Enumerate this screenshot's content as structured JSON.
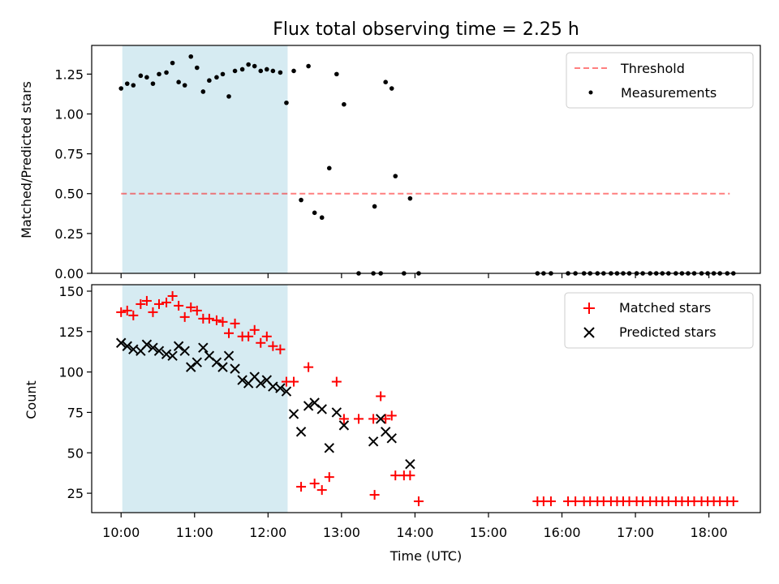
{
  "title": "Flux total observing time = 2.25 h",
  "colors": {
    "shade": "#add8e6",
    "threshold": "#ff0000",
    "measurements": "#000000",
    "matched": "#ff0000",
    "predicted": "#000000"
  },
  "chart_data": [
    {
      "type": "scatter",
      "title": "Flux total observing time = 2.25 h",
      "xlabel": "",
      "ylabel": "Matched/Predicted stars",
      "xlim": [
        "09:36",
        "18:42"
      ],
      "ylim": [
        0,
        1.43
      ],
      "yticks": [
        "0.00",
        "0.25",
        "0.50",
        "0.75",
        "1.00",
        "1.25"
      ],
      "ytick_values": [
        0,
        0.25,
        0.5,
        0.75,
        1.0,
        1.25
      ],
      "shaded_span": [
        "10:01",
        "12:16"
      ],
      "legend": [
        "Threshold",
        "Measurements"
      ],
      "legend_position": "upper right",
      "series": [
        {
          "name": "Threshold",
          "kind": "dashed-line",
          "x": [
            "10:00",
            "18:17"
          ],
          "y": [
            0.5,
            0.5
          ]
        },
        {
          "name": "Measurements",
          "kind": "points",
          "x": [
            "10:00",
            "10:05",
            "10:10",
            "10:16",
            "10:21",
            "10:26",
            "10:31",
            "10:37",
            "10:42",
            "10:47",
            "10:52",
            "10:57",
            "11:02",
            "11:07",
            "11:12",
            "11:18",
            "11:23",
            "11:28",
            "11:33",
            "11:39",
            "11:44",
            "11:49",
            "11:54",
            "11:59",
            "12:04",
            "12:10",
            "12:15",
            "12:21",
            "12:27",
            "12:33",
            "12:38",
            "12:44",
            "12:50",
            "12:56",
            "13:02",
            "13:14",
            "13:26",
            "13:27",
            "13:32",
            "13:36",
            "13:41",
            "13:44",
            "13:51",
            "13:56",
            "14:03",
            "15:40",
            "15:45",
            "15:51",
            "16:05",
            "16:11",
            "16:18",
            "16:23",
            "16:29",
            "16:34",
            "16:40",
            "16:45",
            "16:50",
            "16:55",
            "17:01",
            "17:06",
            "17:12",
            "17:17",
            "17:22",
            "17:27",
            "17:33",
            "17:38",
            "17:43",
            "17:48",
            "17:54",
            "17:59",
            "18:04",
            "18:09",
            "18:15",
            "18:20"
          ],
          "y": [
            1.16,
            1.19,
            1.18,
            1.24,
            1.23,
            1.19,
            1.25,
            1.26,
            1.32,
            1.2,
            1.18,
            1.36,
            1.29,
            1.14,
            1.21,
            1.23,
            1.25,
            1.11,
            1.27,
            1.28,
            1.31,
            1.3,
            1.27,
            1.28,
            1.27,
            1.26,
            1.07,
            1.27,
            0.46,
            1.3,
            0.38,
            0.35,
            0.66,
            1.25,
            1.06,
            0.0,
            0.0,
            0.42,
            0.0,
            1.2,
            1.16,
            0.61,
            0.0,
            0.47,
            0.0,
            0.0,
            0.0,
            0.0,
            0.0,
            0.0,
            0.0,
            0.0,
            0.0,
            0.0,
            0.0,
            0.0,
            0.0,
            0.0,
            0.0,
            0.0,
            0.0,
            0.0,
            0.0,
            0.0,
            0.0,
            0.0,
            0.0,
            0.0,
            0.0,
            0.0,
            0.0,
            0.0,
            0.0,
            0.0
          ]
        }
      ]
    },
    {
      "type": "scatter",
      "title": "",
      "xlabel": "Time (UTC)",
      "ylabel": "Count",
      "xlim": [
        "09:36",
        "18:42"
      ],
      "ylim": [
        13,
        154
      ],
      "xticks": [
        "10:00",
        "11:00",
        "12:00",
        "13:00",
        "14:00",
        "15:00",
        "16:00",
        "17:00",
        "18:00"
      ],
      "yticks": [
        "25",
        "50",
        "75",
        "100",
        "125",
        "150"
      ],
      "ytick_values": [
        25,
        50,
        75,
        100,
        125,
        150
      ],
      "shaded_span": [
        "10:01",
        "12:16"
      ],
      "legend": [
        "Matched stars",
        "Predicted stars"
      ],
      "legend_position": "upper right",
      "series": [
        {
          "name": "Matched stars",
          "marker": "+",
          "x": [
            "10:00",
            "10:05",
            "10:10",
            "10:16",
            "10:21",
            "10:26",
            "10:31",
            "10:37",
            "10:42",
            "10:47",
            "10:52",
            "10:57",
            "11:02",
            "11:07",
            "11:12",
            "11:18",
            "11:23",
            "11:28",
            "11:33",
            "11:39",
            "11:44",
            "11:49",
            "11:54",
            "11:59",
            "12:04",
            "12:10",
            "12:15",
            "12:21",
            "12:27",
            "12:33",
            "12:38",
            "12:44",
            "12:50",
            "12:56",
            "13:02",
            "13:14",
            "13:26",
            "13:27",
            "13:32",
            "13:36",
            "13:41",
            "13:44",
            "13:51",
            "13:56",
            "14:03",
            "15:40",
            "15:45",
            "15:51",
            "16:05",
            "16:11",
            "16:18",
            "16:23",
            "16:29",
            "16:34",
            "16:40",
            "16:45",
            "16:50",
            "16:55",
            "17:01",
            "17:06",
            "17:12",
            "17:17",
            "17:22",
            "17:27",
            "17:33",
            "17:38",
            "17:43",
            "17:48",
            "17:54",
            "17:59",
            "18:04",
            "18:09",
            "18:15",
            "18:20"
          ],
          "y": [
            137,
            138,
            135,
            142,
            144,
            137,
            142,
            143,
            147,
            141,
            134,
            140,
            138,
            133,
            133,
            132,
            131,
            124,
            130,
            122,
            122,
            126,
            118,
            122,
            116,
            114,
            94,
            94,
            29,
            103,
            31,
            27,
            35,
            94,
            71,
            71,
            71,
            24,
            85,
            71,
            73,
            36,
            36,
            36,
            20,
            20,
            20,
            20,
            20,
            20,
            20,
            20,
            20,
            20,
            20,
            20,
            20,
            20,
            20,
            20,
            20,
            20,
            20,
            20,
            20,
            20,
            20,
            20,
            20,
            20,
            20,
            20,
            20,
            20
          ]
        },
        {
          "name": "Predicted stars",
          "marker": "x",
          "x": [
            "10:00",
            "10:05",
            "10:10",
            "10:16",
            "10:21",
            "10:26",
            "10:31",
            "10:37",
            "10:42",
            "10:47",
            "10:52",
            "10:57",
            "11:02",
            "11:07",
            "11:12",
            "11:18",
            "11:23",
            "11:28",
            "11:33",
            "11:39",
            "11:44",
            "11:49",
            "11:54",
            "11:59",
            "12:04",
            "12:10",
            "12:15",
            "12:21",
            "12:27",
            "12:33",
            "12:38",
            "12:44",
            "12:50",
            "12:56",
            "13:02",
            "13:26",
            "13:32",
            "13:36",
            "13:41",
            "13:56"
          ],
          "y": [
            118,
            116,
            114,
            113,
            117,
            115,
            113,
            111,
            110,
            116,
            113,
            103,
            106,
            115,
            110,
            106,
            103,
            110,
            102,
            95,
            93,
            97,
            93,
            95,
            91,
            90,
            88,
            74,
            63,
            79,
            81,
            77,
            53,
            75,
            67,
            57,
            71,
            63,
            59,
            43
          ]
        }
      ]
    }
  ]
}
